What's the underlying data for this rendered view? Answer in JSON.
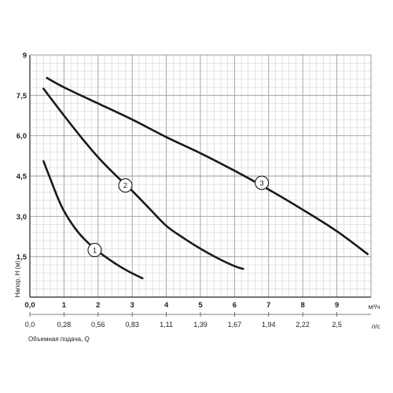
{
  "chart_data": {
    "type": "line",
    "xlabel_primary": "м³/ч",
    "xlabel_secondary": "л/с",
    "xlabel_caption": "Объемная подача, Q",
    "ylabel": "Напор, H (м)",
    "xlim": [
      0,
      10
    ],
    "ylim": [
      0,
      9
    ],
    "grid": true,
    "x_ticks": [
      "0,0",
      "1",
      "2",
      "3",
      "4",
      "5",
      "6",
      "7",
      "8",
      "9"
    ],
    "y_ticks": [
      "1,5",
      "3,0",
      "4,5",
      "6,0",
      "7,5",
      "9"
    ],
    "secondary_ticks": [
      "0,0",
      "0,28",
      "0,56",
      "0,83",
      "1,11",
      "1,39",
      "1,67",
      "1,94",
      "2,22",
      "2,5"
    ],
    "series": [
      {
        "label": "1",
        "x": [
          0.4,
          0.6,
          0.8,
          1.0,
          1.3,
          1.6,
          2.0,
          2.5,
          2.9,
          3.3
        ],
        "y": [
          5.05,
          4.4,
          3.75,
          3.2,
          2.6,
          2.15,
          1.7,
          1.25,
          0.95,
          0.7
        ],
        "marker_at": [
          1.9,
          1.75
        ]
      },
      {
        "label": "2",
        "x": [
          0.4,
          1.0,
          1.5,
          2.0,
          2.5,
          3.0,
          3.5,
          4.0,
          4.5,
          5.0,
          5.5,
          6.0,
          6.25
        ],
        "y": [
          7.75,
          6.75,
          5.95,
          5.2,
          4.55,
          3.95,
          3.3,
          2.65,
          2.2,
          1.8,
          1.45,
          1.15,
          1.05
        ],
        "marker_at": [
          2.8,
          4.15
        ]
      },
      {
        "label": "3",
        "x": [
          0.5,
          1.0,
          2.0,
          3.0,
          4.0,
          5.0,
          6.0,
          7.0,
          8.0,
          9.0,
          9.9
        ],
        "y": [
          8.15,
          7.8,
          7.2,
          6.6,
          5.95,
          5.35,
          4.7,
          4.0,
          3.25,
          2.45,
          1.6
        ],
        "marker_at": [
          6.8,
          4.25
        ]
      }
    ]
  }
}
